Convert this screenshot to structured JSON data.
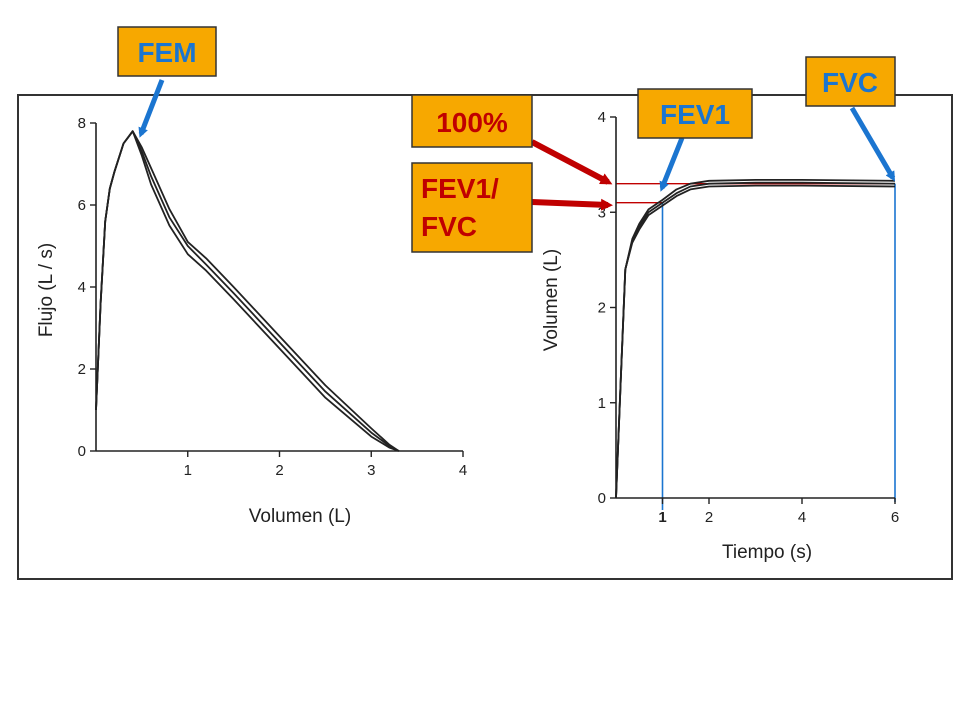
{
  "colors": {
    "callout_fill": "#f7a800",
    "callout_border": "#333333",
    "callout_text_blue": "#1b75d0",
    "callout_text_red": "#c00000",
    "arrow_blue": "#1b75d0",
    "arrow_red": "#c00000",
    "guide_blue": "#1b75d0",
    "guide_red": "#c00000",
    "curve": "#222222"
  },
  "callouts": {
    "fem": "FEM",
    "fvc": "FVC",
    "fev1": "FEV1",
    "pct100": "100%",
    "ratio_line1": "FEV1/",
    "ratio_line2": "FVC"
  },
  "chart_data": [
    {
      "type": "line",
      "title": "",
      "xlabel": "Volumen (L)",
      "ylabel": "Flujo  (L / s)",
      "xlim": [
        0,
        4
      ],
      "ylim": [
        0,
        8
      ],
      "xticks": [
        1,
        2,
        3,
        4
      ],
      "yticks": [
        0,
        2,
        4,
        6,
        8
      ],
      "series": [
        {
          "x": [
            0,
            0.05,
            0.1,
            0.15,
            0.2,
            0.3,
            0.4,
            0.5,
            0.6,
            0.8,
            1.0,
            1.2,
            1.5,
            2.0,
            2.5,
            3.0,
            3.2,
            3.3
          ],
          "y": [
            1.0,
            3.6,
            5.6,
            6.4,
            6.8,
            7.5,
            7.8,
            7.2,
            6.5,
            5.5,
            4.8,
            4.4,
            3.7,
            2.5,
            1.3,
            0.35,
            0.08,
            0
          ]
        },
        {
          "x": [
            0,
            0.05,
            0.1,
            0.15,
            0.2,
            0.3,
            0.4,
            0.5,
            0.6,
            0.8,
            1.0,
            1.2,
            1.5,
            2.0,
            2.5,
            3.0,
            3.2,
            3.3
          ],
          "y": [
            1.0,
            3.6,
            5.6,
            6.4,
            6.8,
            7.5,
            7.8,
            7.3,
            6.7,
            5.7,
            5.0,
            4.55,
            3.85,
            2.65,
            1.45,
            0.45,
            0.12,
            0
          ]
        },
        {
          "x": [
            0,
            0.05,
            0.1,
            0.15,
            0.2,
            0.3,
            0.4,
            0.5,
            0.6,
            0.8,
            1.0,
            1.2,
            1.5,
            2.0,
            2.5,
            3.0,
            3.2,
            3.3
          ],
          "y": [
            1.0,
            3.6,
            5.6,
            6.4,
            6.8,
            7.5,
            7.8,
            7.4,
            6.9,
            5.9,
            5.1,
            4.7,
            4.0,
            2.8,
            1.6,
            0.55,
            0.15,
            0
          ]
        }
      ]
    },
    {
      "type": "line",
      "title": "",
      "xlabel": "Tiempo (s)",
      "ylabel": "Volumen  (L)",
      "xlim": [
        0,
        6
      ],
      "ylim": [
        0,
        4
      ],
      "xticks": [
        1,
        2,
        4,
        6
      ],
      "yticks": [
        0,
        1,
        2,
        3,
        4
      ],
      "fev1_time": 1,
      "fev1_volume": 3.1,
      "fvc_volume": 3.3,
      "series": [
        {
          "x": [
            0,
            0.1,
            0.2,
            0.35,
            0.5,
            0.7,
            1.0,
            1.3,
            1.6,
            2.0,
            3.0,
            4.0,
            6.0
          ],
          "y": [
            0,
            1.2,
            2.4,
            2.7,
            2.85,
            3.0,
            3.1,
            3.2,
            3.27,
            3.3,
            3.31,
            3.31,
            3.3
          ]
        },
        {
          "x": [
            0,
            0.1,
            0.2,
            0.35,
            0.5,
            0.7,
            1.0,
            1.3,
            1.6,
            2.0,
            3.0,
            4.0,
            6.0
          ],
          "y": [
            0,
            1.2,
            2.4,
            2.72,
            2.88,
            3.03,
            3.13,
            3.24,
            3.3,
            3.33,
            3.34,
            3.34,
            3.33
          ]
        },
        {
          "x": [
            0,
            0.1,
            0.2,
            0.35,
            0.5,
            0.7,
            1.0,
            1.3,
            1.6,
            2.0,
            3.0,
            4.0,
            6.0
          ],
          "y": [
            0,
            1.2,
            2.4,
            2.68,
            2.82,
            2.97,
            3.07,
            3.17,
            3.24,
            3.27,
            3.28,
            3.28,
            3.27
          ]
        }
      ]
    }
  ]
}
